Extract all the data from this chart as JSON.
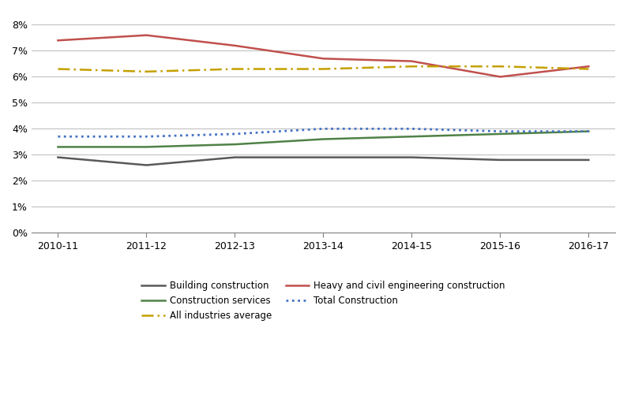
{
  "x_labels": [
    "2010-11",
    "2011-12",
    "2012-13",
    "2013-14",
    "2014-15",
    "2015-16",
    "2016-17"
  ],
  "x_values": [
    0,
    1,
    2,
    3,
    4,
    5,
    6
  ],
  "building_construction": [
    0.029,
    0.026,
    0.029,
    0.029,
    0.029,
    0.028,
    0.028
  ],
  "heavy_civil": [
    0.074,
    0.076,
    0.072,
    0.067,
    0.066,
    0.06,
    0.064
  ],
  "construction_services": [
    0.033,
    0.033,
    0.034,
    0.036,
    0.037,
    0.038,
    0.039
  ],
  "total_construction": [
    0.037,
    0.037,
    0.038,
    0.04,
    0.04,
    0.039,
    0.039
  ],
  "all_industries": [
    0.063,
    0.062,
    0.063,
    0.063,
    0.064,
    0.064,
    0.063
  ],
  "building_color": "#595959",
  "heavy_civil_color": "#c0504d",
  "construction_services_color": "#4f8146",
  "total_construction_color": "#4472c4",
  "all_industries_color": "#c4a000",
  "ylim": [
    0,
    0.085
  ],
  "yticks": [
    0.0,
    0.01,
    0.02,
    0.03,
    0.04,
    0.05,
    0.06,
    0.07,
    0.08
  ],
  "grid_color": "#c0c0c0",
  "background_color": "#ffffff"
}
